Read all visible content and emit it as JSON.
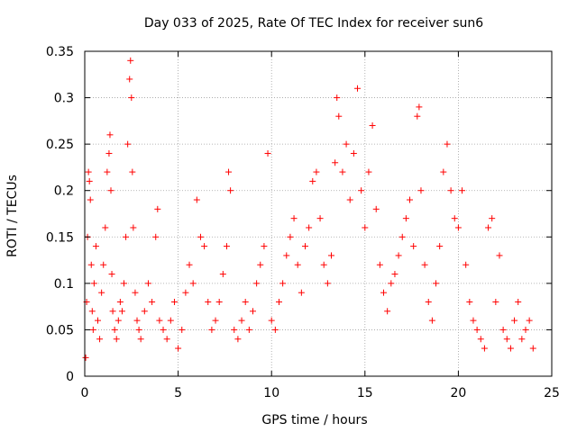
{
  "chart_data": {
    "type": "scatter",
    "title": "Day 033 of 2025, Rate Of TEC Index for receiver sun6",
    "xlabel": "GPS time / hours",
    "ylabel": "ROTI / TECUs",
    "xlim": [
      0,
      25
    ],
    "ylim": [
      0,
      0.35
    ],
    "x_ticks": [
      "0",
      "5",
      "10",
      "15",
      "20",
      "25"
    ],
    "y_ticks": [
      "0",
      "0.05",
      "0.1",
      "0.15",
      "0.2",
      "0.25",
      "0.3",
      "0.35"
    ],
    "grid": true,
    "marker": "plus",
    "color": "#ff0000",
    "series": [
      {
        "x": [
          0.05,
          0.1,
          0.15,
          0.2,
          0.25,
          0.3,
          0.35,
          0.4,
          0.45,
          0.5,
          0.6,
          0.7,
          0.8,
          0.9,
          1.0,
          1.1,
          1.2,
          1.3,
          1.35,
          1.4,
          1.45,
          1.5,
          1.6,
          1.7,
          1.8,
          1.9,
          2.0,
          2.1,
          2.2,
          2.3,
          2.4,
          2.45,
          2.5,
          2.55,
          2.6,
          2.7,
          2.8,
          2.9,
          3.0,
          3.2,
          3.4,
          3.6,
          3.8,
          3.9,
          4.0,
          4.2,
          4.4,
          4.6,
          4.8,
          5.0,
          5.2,
          5.4,
          5.6,
          5.8,
          6.0,
          6.2,
          6.4,
          6.6,
          6.8,
          7.0,
          7.2,
          7.4,
          7.6,
          7.7,
          7.8,
          8.0,
          8.2,
          8.4,
          8.6,
          8.8,
          9.0,
          9.2,
          9.4,
          9.6,
          9.8,
          10.0,
          10.2,
          10.4,
          10.6,
          10.8,
          11.0,
          11.2,
          11.4,
          11.6,
          11.8,
          12.0,
          12.2,
          12.4,
          12.6,
          12.8,
          13.0,
          13.2,
          13.4,
          13.5,
          13.6,
          13.8,
          14.0,
          14.2,
          14.4,
          14.6,
          14.8,
          15.0,
          15.2,
          15.4,
          15.6,
          15.8,
          16.0,
          16.2,
          16.4,
          16.6,
          16.8,
          17.0,
          17.2,
          17.4,
          17.6,
          17.8,
          17.9,
          18.0,
          18.2,
          18.4,
          18.6,
          18.8,
          19.0,
          19.2,
          19.4,
          19.6,
          19.8,
          20.0,
          20.2,
          20.4,
          20.6,
          20.8,
          21.0,
          21.2,
          21.4,
          21.6,
          21.8,
          22.0,
          22.2,
          22.4,
          22.6,
          22.8,
          23.0,
          23.2,
          23.4,
          23.6,
          23.8,
          24.0
        ],
        "y": [
          0.02,
          0.08,
          0.15,
          0.22,
          0.21,
          0.19,
          0.12,
          0.07,
          0.05,
          0.1,
          0.14,
          0.06,
          0.04,
          0.09,
          0.12,
          0.16,
          0.22,
          0.24,
          0.26,
          0.2,
          0.11,
          0.07,
          0.05,
          0.04,
          0.06,
          0.08,
          0.07,
          0.1,
          0.15,
          0.25,
          0.32,
          0.34,
          0.3,
          0.22,
          0.16,
          0.09,
          0.06,
          0.05,
          0.04,
          0.07,
          0.1,
          0.08,
          0.15,
          0.18,
          0.06,
          0.05,
          0.04,
          0.06,
          0.08,
          0.03,
          0.05,
          0.09,
          0.12,
          0.1,
          0.19,
          0.15,
          0.14,
          0.08,
          0.05,
          0.06,
          0.08,
          0.11,
          0.14,
          0.22,
          0.2,
          0.05,
          0.04,
          0.06,
          0.08,
          0.05,
          0.07,
          0.1,
          0.12,
          0.14,
          0.24,
          0.06,
          0.05,
          0.08,
          0.1,
          0.13,
          0.15,
          0.17,
          0.12,
          0.09,
          0.14,
          0.16,
          0.21,
          0.22,
          0.17,
          0.12,
          0.1,
          0.13,
          0.23,
          0.3,
          0.28,
          0.22,
          0.25,
          0.19,
          0.24,
          0.31,
          0.2,
          0.16,
          0.22,
          0.27,
          0.18,
          0.12,
          0.09,
          0.07,
          0.1,
          0.11,
          0.13,
          0.15,
          0.17,
          0.19,
          0.14,
          0.28,
          0.29,
          0.2,
          0.12,
          0.08,
          0.06,
          0.1,
          0.14,
          0.22,
          0.25,
          0.2,
          0.17,
          0.16,
          0.2,
          0.12,
          0.08,
          0.06,
          0.05,
          0.04,
          0.03,
          0.16,
          0.17,
          0.08,
          0.13,
          0.05,
          0.04,
          0.03,
          0.06,
          0.08,
          0.04,
          0.05,
          0.06,
          0.03
        ]
      }
    ]
  }
}
